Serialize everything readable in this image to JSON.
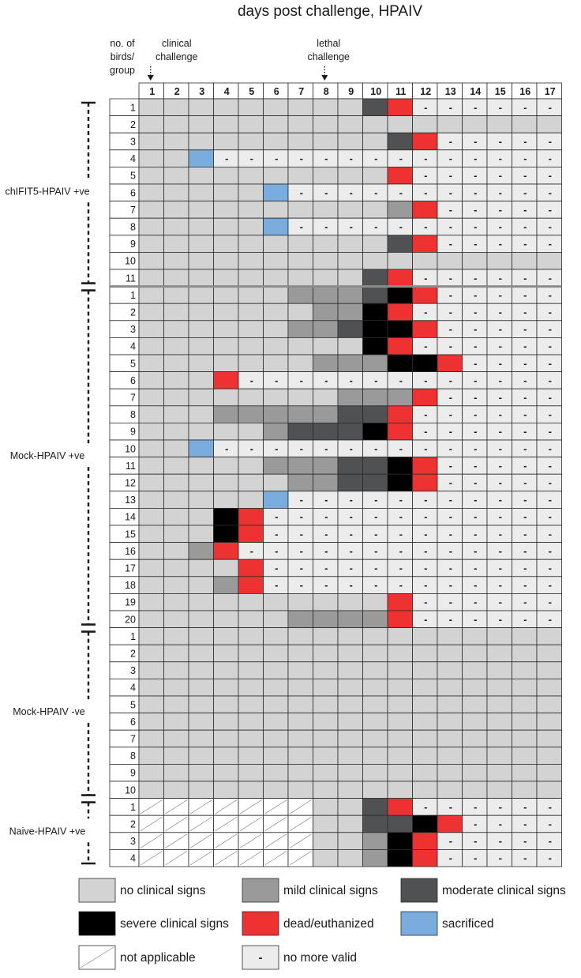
{
  "chart_data": {
    "type": "heatmap",
    "title": "days post challenge, HPAIV",
    "row_header": [
      "no. of",
      "birds/",
      "group"
    ],
    "annotations": [
      {
        "lines": [
          "clinical",
          "challenge"
        ],
        "day": 1
      },
      {
        "lines": [
          "lethal",
          "challenge"
        ],
        "day": 8
      }
    ],
    "days": [
      1,
      2,
      3,
      4,
      5,
      6,
      7,
      8,
      9,
      10,
      11,
      12,
      13,
      14,
      15,
      16,
      17
    ],
    "status_codes": {
      "N": "no clinical signs",
      "L": "mild clinical signs",
      "M": "moderate clinical signs",
      "S": "severe clinical signs",
      "D": "dead/euthanized",
      "X": "sacrificed",
      "A": "not applicable",
      "V": "no more valid"
    },
    "legend": [
      {
        "code": "N",
        "label": "no clinical signs",
        "color": "#d3d3d3"
      },
      {
        "code": "L",
        "label": "mild clinical signs",
        "color": "#9a9a9a"
      },
      {
        "code": "M",
        "label": "moderate clinical signs",
        "color": "#4f5152"
      },
      {
        "code": "S",
        "label": "severe clinical signs",
        "color": "#000000"
      },
      {
        "code": "D",
        "label": "dead/euthanized",
        "color": "#ee3231"
      },
      {
        "code": "X",
        "label": "sacrificed",
        "color": "#7aaddd"
      },
      {
        "code": "A",
        "label": "not applicable",
        "color": "#ffffff"
      },
      {
        "code": "V",
        "label": "no more valid",
        "color": "#ececec",
        "mark": "-"
      }
    ],
    "groups": [
      {
        "name": "chIFIT5-HPAIV +ve",
        "rows": [
          {
            "bird": "1",
            "days": "NNNNNNNNNMDVVVVVV"
          },
          {
            "bird": "2",
            "days": "NNNNNNNNNNNNNNNNN"
          },
          {
            "bird": "3",
            "days": "NNNNNNNNNNMDVVVVV"
          },
          {
            "bird": "4",
            "days": "NNXVVVVVVVVVVVVVV"
          },
          {
            "bird": "5",
            "days": "NNNNNNNNNNDVVVVVV"
          },
          {
            "bird": "6",
            "days": "NNNNNXVVVVVVVVVVV"
          },
          {
            "bird": "7",
            "days": "NNNNNNNNNNLDVVVVV"
          },
          {
            "bird": "8",
            "days": "NNNNNXVVVVVVVVVVV"
          },
          {
            "bird": "9",
            "days": "NNNNNNNNNNMDVVVVV"
          },
          {
            "bird": "10",
            "days": "NNNNNNNNNNNNNNNNN"
          },
          {
            "bird": "11",
            "days": "NNNNNNNNNMDVVVVVV"
          }
        ]
      },
      {
        "name": "Mock-HPAIV +ve",
        "rows": [
          {
            "bird": "1",
            "days": "NNNNNNLLLMSDVVVVV"
          },
          {
            "bird": "2",
            "days": "NNNNNNNLLSDVVVVVV"
          },
          {
            "bird": "3",
            "days": "NNNNNNLLMSSDVVVVV"
          },
          {
            "bird": "4",
            "days": "NNNNNNNNNSDVVVVVV"
          },
          {
            "bird": "5",
            "days": "NNNNNNNLLLSSDVVVV"
          },
          {
            "bird": "6",
            "days": "NNNDVVVVVVVVVVVVV"
          },
          {
            "bird": "7",
            "days": "NNNNNNNNLLLDVVVVV"
          },
          {
            "bird": "8",
            "days": "NNNLLLLLMMDVVVVVV"
          },
          {
            "bird": "9",
            "days": "NNNNNLMMMSDVVVVVV"
          },
          {
            "bird": "10",
            "days": "NNXVVVVVVVVVVVVVV"
          },
          {
            "bird": "11",
            "days": "NNNNNLLLMMSDVVVVV"
          },
          {
            "bird": "12",
            "days": "NNNNNNLLMMSDVVVVV"
          },
          {
            "bird": "13",
            "days": "NNNNNXVVVVVVVVVVV"
          },
          {
            "bird": "14",
            "days": "NNNSDVVVVVVVVVVVV"
          },
          {
            "bird": "15",
            "days": "NNNSDVVVVVVVVVVVV"
          },
          {
            "bird": "16",
            "days": "NNLDVVVVVVVVVVVVV"
          },
          {
            "bird": "17",
            "days": "NNNNDVVVVVVVVVVVV"
          },
          {
            "bird": "18",
            "days": "NNNLDVVVVVVVVVVVV"
          },
          {
            "bird": "19",
            "days": "NNNNNNNNNNDVVVVVV"
          },
          {
            "bird": "20",
            "days": "NNNNNNLLLLDVVVVVV"
          }
        ]
      },
      {
        "name": "Mock-HPAIV -ve",
        "rows": [
          {
            "bird": "1",
            "days": "NNNNNNNNNNNNNNNNN"
          },
          {
            "bird": "2",
            "days": "NNNNNNNNNNNNNNNNN"
          },
          {
            "bird": "3",
            "days": "NNNNNNNNNNNNNNNNN"
          },
          {
            "bird": "4",
            "days": "NNNNNNNNNNNNNNNNN"
          },
          {
            "bird": "5",
            "days": "NNNNNNNNNNNNNNNNN"
          },
          {
            "bird": "6",
            "days": "NNNNNNNNNNNNNNNNN"
          },
          {
            "bird": "7",
            "days": "NNNNNNNNNNNNNNNNN"
          },
          {
            "bird": "8",
            "days": "NNNNNNNNNNNNNNNNN"
          },
          {
            "bird": "9",
            "days": "NNNNNNNNNNNNNNNNN"
          },
          {
            "bird": "10",
            "days": "NNNNNNNNNNNNNNNNN"
          }
        ]
      },
      {
        "name": "Naive-HPAIV +ve",
        "rows": [
          {
            "bird": "1",
            "days": "AAAAAAANNMDVVVVVV"
          },
          {
            "bird": "2",
            "days": "AAAAAAANNMMSDVVVV"
          },
          {
            "bird": "3",
            "days": "AAAAAAANNLSDVVVVV"
          },
          {
            "bird": "4",
            "days": "AAAAAAANNLSDVVVVV"
          }
        ]
      }
    ]
  }
}
